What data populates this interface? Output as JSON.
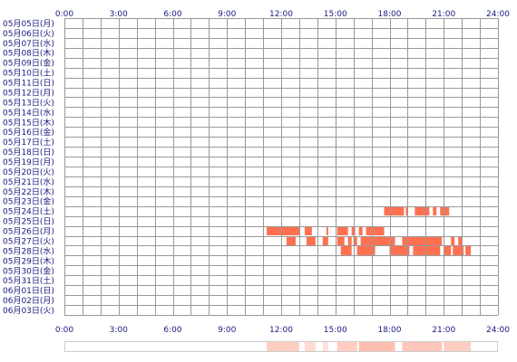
{
  "chart_data": {
    "type": "heatmap",
    "title": "",
    "xlabel": "",
    "ylabel": "",
    "x_ticks": [
      "0:00",
      "3:00",
      "6:00",
      "9:00",
      "12:00",
      "15:00",
      "18:00",
      "21:00",
      "24:00"
    ],
    "xlim": [
      0,
      24
    ],
    "rows": [
      "05月05日(月)",
      "05月06日(火)",
      "05月07日(水)",
      "05月08日(木)",
      "05月09日(金)",
      "05月10日(土)",
      "05月11日(日)",
      "05月12日(月)",
      "05月13日(火)",
      "05月14日(水)",
      "05月15日(木)",
      "05月16日(金)",
      "05月17日(土)",
      "05月18日(日)",
      "05月19日(月)",
      "05月20日(火)",
      "05月21日(水)",
      "05月22日(木)",
      "05月23日(金)",
      "05月24日(土)",
      "05月25日(日)",
      "05月26日(月)",
      "05月27日(火)",
      "05月28日(水)",
      "05月29日(木)",
      "05月30日(金)",
      "05月31日(土)",
      "06月01日(日)",
      "06月02日(月)",
      "06月03日(火)"
    ],
    "grid": true,
    "colors": {
      "activity": "#ff7050",
      "grid": "#999999",
      "label": "#1a1a80",
      "summary_border": "#cccccc"
    },
    "activity": [
      {
        "row": "05月24日(土)",
        "start": 17.7,
        "end": 18.8
      },
      {
        "row": "05月24日(土)",
        "start": 18.9,
        "end": 19.0
      },
      {
        "row": "05月24日(土)",
        "start": 19.4,
        "end": 20.2
      },
      {
        "row": "05月24日(土)",
        "start": 20.4,
        "end": 20.6
      },
      {
        "row": "05月24日(土)",
        "start": 20.8,
        "end": 21.3
      },
      {
        "row": "05月26日(月)",
        "start": 11.2,
        "end": 13.0
      },
      {
        "row": "05月26日(月)",
        "start": 13.3,
        "end": 13.7
      },
      {
        "row": "05月26日(月)",
        "start": 14.5,
        "end": 14.6
      },
      {
        "row": "05月26日(月)",
        "start": 15.1,
        "end": 15.7
      },
      {
        "row": "05月26日(月)",
        "start": 15.9,
        "end": 16.1
      },
      {
        "row": "05月26日(月)",
        "start": 16.3,
        "end": 16.5
      },
      {
        "row": "05月26日(月)",
        "start": 16.7,
        "end": 17.7
      },
      {
        "row": "05月27日(火)",
        "start": 12.3,
        "end": 12.8
      },
      {
        "row": "05月27日(火)",
        "start": 13.4,
        "end": 13.9
      },
      {
        "row": "05月27日(火)",
        "start": 14.3,
        "end": 14.6
      },
      {
        "row": "05月27日(火)",
        "start": 15.1,
        "end": 15.5
      },
      {
        "row": "05月27日(火)",
        "start": 15.7,
        "end": 15.9
      },
      {
        "row": "05月27日(火)",
        "start": 16.0,
        "end": 16.2
      },
      {
        "row": "05月27日(火)",
        "start": 16.4,
        "end": 18.3
      },
      {
        "row": "05月27日(火)",
        "start": 18.7,
        "end": 20.9
      },
      {
        "row": "05月27日(火)",
        "start": 21.4,
        "end": 21.6
      },
      {
        "row": "05月27日(火)",
        "start": 21.8,
        "end": 22.0
      },
      {
        "row": "05月28日(水)",
        "start": 15.3,
        "end": 15.9
      },
      {
        "row": "05月28日(水)",
        "start": 16.2,
        "end": 17.2
      },
      {
        "row": "05月28日(水)",
        "start": 18.0,
        "end": 19.1
      },
      {
        "row": "05月28日(水)",
        "start": 19.3,
        "end": 20.8
      },
      {
        "row": "05月28日(水)",
        "start": 21.0,
        "end": 21.4
      },
      {
        "row": "05月28日(水)",
        "start": 21.5,
        "end": 22.1
      },
      {
        "row": "05月28日(水)",
        "start": 22.2,
        "end": 22.5
      }
    ],
    "summary": [
      {
        "start": 11.2,
        "end": 13.0,
        "level": 0.35
      },
      {
        "start": 13.3,
        "end": 13.9,
        "level": 0.25
      },
      {
        "start": 14.3,
        "end": 14.6,
        "level": 0.2
      },
      {
        "start": 15.1,
        "end": 16.2,
        "level": 0.35
      },
      {
        "start": 16.3,
        "end": 18.3,
        "level": 0.45
      },
      {
        "start": 18.7,
        "end": 20.9,
        "level": 0.4
      },
      {
        "start": 21.0,
        "end": 22.5,
        "level": 0.35
      }
    ]
  }
}
